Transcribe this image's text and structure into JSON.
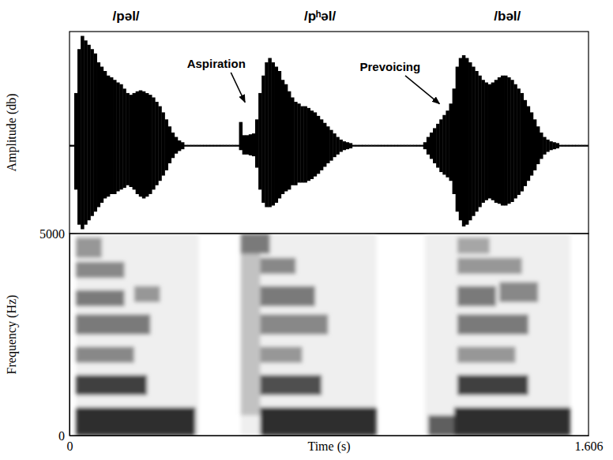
{
  "chart_data": [
    {
      "type": "waveform",
      "color": "#000000",
      "y_label": "Amplitude (db)",
      "tick_labels": false,
      "xlim": [
        0,
        1.606
      ],
      "ylim": [
        -1,
        1.3
      ],
      "labels": [
        {
          "text": "/pəl/",
          "x": 0.175
        },
        {
          "text": "/pʰəl/",
          "x": 0.775
        },
        {
          "text": "/bəl/",
          "x": 1.355
        }
      ],
      "annotations": [
        {
          "text": "Aspiration",
          "x": 0.454,
          "y": 0.924,
          "arrow_x": 0.543,
          "arrow_y": 0.495
        },
        {
          "text": "Prevoicing",
          "x": 0.992,
          "y": 0.888,
          "arrow_x": 1.145,
          "arrow_y": 0.477
        }
      ],
      "x": [
        0,
        0.01,
        0.02,
        0.03,
        0.04,
        0.05,
        0.06,
        0.07,
        0.08,
        0.09,
        0.1,
        0.11,
        0.12,
        0.13,
        0.14,
        0.15,
        0.16,
        0.17,
        0.18,
        0.19,
        0.2,
        0.21,
        0.22,
        0.23,
        0.24,
        0.25,
        0.26,
        0.27,
        0.28,
        0.29,
        0.3,
        0.31,
        0.32,
        0.33,
        0.34,
        0.35,
        0.36,
        0.37,
        0.38,
        0.39,
        0.4,
        0.41,
        0.42,
        0.43,
        0.44,
        0.45,
        0.46,
        0.47,
        0.48,
        0.49,
        0.5,
        0.51,
        0.52,
        0.53,
        0.54,
        0.55,
        0.56,
        0.57,
        0.58,
        0.59,
        0.6,
        0.61,
        0.62,
        0.63,
        0.64,
        0.65,
        0.66,
        0.67,
        0.68,
        0.69,
        0.7,
        0.71,
        0.72,
        0.73,
        0.74,
        0.75,
        0.76,
        0.77,
        0.78,
        0.79,
        0.8,
        0.81,
        0.82,
        0.83,
        0.84,
        0.85,
        0.86,
        0.87,
        0.88,
        0.89,
        0.9,
        0.91,
        0.92,
        0.93,
        0.94,
        0.95,
        0.96,
        0.97,
        0.98,
        0.99,
        1,
        1.01,
        1.02,
        1.03,
        1.04,
        1.05,
        1.06,
        1.07,
        1.08,
        1.09,
        1.1,
        1.11,
        1.12,
        1.13,
        1.14,
        1.15,
        1.16,
        1.17,
        1.18,
        1.19,
        1.2,
        1.21,
        1.22,
        1.23,
        1.24,
        1.25,
        1.26,
        1.27,
        1.28,
        1.29,
        1.3,
        1.31,
        1.32,
        1.33,
        1.34,
        1.35,
        1.36,
        1.37,
        1.38,
        1.39,
        1.4,
        1.41,
        1.42,
        1.43,
        1.44,
        1.45,
        1.46,
        1.47,
        1.48,
        1.49,
        1.5,
        1.51,
        1.52,
        1.53,
        1.54,
        1.55,
        1.56,
        1.57,
        1.58,
        1.59,
        1.6
      ],
      "series": [
        {
          "values": [
            0.01,
            0.01,
            0.6,
            1.1,
            1.25,
            1.2,
            1.15,
            1.1,
            1.05,
            0.95,
            0.9,
            0.85,
            0.8,
            0.78,
            0.75,
            0.72,
            0.7,
            0.65,
            0.6,
            0.58,
            0.6,
            0.62,
            0.63,
            0.62,
            0.6,
            0.58,
            0.55,
            0.5,
            0.45,
            0.38,
            0.3,
            0.22,
            0.15,
            0.1,
            0.06,
            0.04,
            0.01,
            0.01,
            0.01,
            0.01,
            0.01,
            0.01,
            0.01,
            0.01,
            0.01,
            0.01,
            0.01,
            0.01,
            0.01,
            0.01,
            0.01,
            0.01,
            0.01,
            0.27,
            0.12,
            0.12,
            0.13,
            0.14,
            0.3,
            0.6,
            0.8,
            0.95,
            1.0,
            0.95,
            0.9,
            0.85,
            0.75,
            0.7,
            0.62,
            0.55,
            0.5,
            0.48,
            0.45,
            0.45,
            0.43,
            0.4,
            0.38,
            0.34,
            0.3,
            0.26,
            0.22,
            0.18,
            0.14,
            0.1,
            0.07,
            0.05,
            0.04,
            0.03,
            0.01,
            0.01,
            0.01,
            0.01,
            0.01,
            0.01,
            0.01,
            0.01,
            0.01,
            0.01,
            0.01,
            0.01,
            0.01,
            0.01,
            0.01,
            0.01,
            0.01,
            0.01,
            0.01,
            0.01,
            0.01,
            0.01,
            0.04,
            0.1,
            0.15,
            0.2,
            0.25,
            0.3,
            0.35,
            0.4,
            0.48,
            0.65,
            0.9,
            1.0,
            1.03,
            1.0,
            0.95,
            0.9,
            0.85,
            0.8,
            0.75,
            0.72,
            0.7,
            0.72,
            0.75,
            0.78,
            0.8,
            0.8,
            0.78,
            0.75,
            0.7,
            0.65,
            0.6,
            0.52,
            0.45,
            0.38,
            0.3,
            0.22,
            0.15,
            0.1,
            0.07,
            0.05,
            0.04,
            0.03,
            0.01,
            0.01,
            0.01,
            0.01,
            0.01,
            0.01,
            0.01,
            0.01,
            0.01
          ]
        },
        {
          "values": [
            -0.01,
            -0.01,
            -0.5,
            -0.9,
            -0.95,
            -0.9,
            -0.85,
            -0.8,
            -0.75,
            -0.7,
            -0.65,
            -0.6,
            -0.58,
            -0.55,
            -0.55,
            -0.52,
            -0.5,
            -0.48,
            -0.45,
            -0.47,
            -0.5,
            -0.55,
            -0.58,
            -0.6,
            -0.58,
            -0.55,
            -0.5,
            -0.45,
            -0.4,
            -0.34,
            -0.28,
            -0.2,
            -0.14,
            -0.09,
            -0.06,
            -0.04,
            -0.01,
            -0.01,
            -0.01,
            -0.01,
            -0.01,
            -0.01,
            -0.01,
            -0.01,
            -0.01,
            -0.01,
            -0.01,
            -0.01,
            -0.01,
            -0.01,
            -0.01,
            -0.01,
            -0.01,
            -0.05,
            -0.1,
            -0.1,
            -0.11,
            -0.12,
            -0.25,
            -0.5,
            -0.65,
            -0.7,
            -0.7,
            -0.68,
            -0.65,
            -0.6,
            -0.55,
            -0.52,
            -0.5,
            -0.45,
            -0.45,
            -0.42,
            -0.42,
            -0.42,
            -0.4,
            -0.38,
            -0.35,
            -0.32,
            -0.28,
            -0.24,
            -0.2,
            -0.17,
            -0.13,
            -0.1,
            -0.07,
            -0.05,
            -0.04,
            -0.03,
            -0.01,
            -0.01,
            -0.01,
            -0.01,
            -0.01,
            -0.01,
            -0.01,
            -0.01,
            -0.01,
            -0.01,
            -0.01,
            -0.01,
            -0.01,
            -0.01,
            -0.01,
            -0.01,
            -0.01,
            -0.01,
            -0.01,
            -0.01,
            -0.01,
            -0.01,
            -0.04,
            -0.1,
            -0.15,
            -0.2,
            -0.25,
            -0.3,
            -0.33,
            -0.36,
            -0.4,
            -0.55,
            -0.75,
            -0.85,
            -0.92,
            -0.9,
            -0.85,
            -0.8,
            -0.75,
            -0.7,
            -0.65,
            -0.62,
            -0.6,
            -0.62,
            -0.65,
            -0.66,
            -0.68,
            -0.68,
            -0.66,
            -0.64,
            -0.6,
            -0.56,
            -0.52,
            -0.46,
            -0.4,
            -0.34,
            -0.28,
            -0.21,
            -0.15,
            -0.1,
            -0.07,
            -0.05,
            -0.04,
            -0.03,
            -0.01,
            -0.01,
            -0.01,
            -0.01,
            -0.01,
            -0.01,
            -0.01,
            -0.01,
            -0.01
          ]
        }
      ]
    },
    {
      "type": "spectrogram",
      "x_label": "Time (s)",
      "y_label": "Frequency (Hz)",
      "xlim": [
        0,
        1.606
      ],
      "xticks": [
        0,
        1.606
      ],
      "ylim": [
        0,
        5000
      ],
      "yticks": [
        0,
        5000
      ],
      "cells": [
        {
          "x0": 0.02,
          "x1": 0.4,
          "y0": 0,
          "y1": 5000,
          "value": 0.12
        },
        {
          "x0": 0.53,
          "x1": 0.95,
          "y0": 0,
          "y1": 5000,
          "value": 0.12
        },
        {
          "x0": 1.1,
          "x1": 1.55,
          "y0": 0,
          "y1": 5000,
          "value": 0.12
        },
        {
          "x0": 0.02,
          "x1": 0.39,
          "y0": 0,
          "y1": 700,
          "value": 0.85
        },
        {
          "x0": 0.02,
          "x1": 0.24,
          "y0": 1000,
          "y1": 1500,
          "value": 0.8
        },
        {
          "x0": 0.02,
          "x1": 0.2,
          "y0": 1800,
          "y1": 2200,
          "value": 0.55
        },
        {
          "x0": 0.02,
          "x1": 0.25,
          "y0": 2500,
          "y1": 3000,
          "value": 0.6
        },
        {
          "x0": 0.02,
          "x1": 0.17,
          "y0": 3200,
          "y1": 3600,
          "value": 0.6
        },
        {
          "x0": 0.2,
          "x1": 0.28,
          "y0": 3300,
          "y1": 3700,
          "value": 0.5
        },
        {
          "x0": 0.02,
          "x1": 0.17,
          "y0": 3900,
          "y1": 4300,
          "value": 0.55
        },
        {
          "x0": 0.02,
          "x1": 0.1,
          "y0": 4400,
          "y1": 4900,
          "value": 0.5
        },
        {
          "x0": 0.53,
          "x1": 0.59,
          "y0": 500,
          "y1": 5000,
          "value": 0.35
        },
        {
          "x0": 0.59,
          "x1": 0.95,
          "y0": 0,
          "y1": 700,
          "value": 0.85
        },
        {
          "x0": 0.59,
          "x1": 0.78,
          "y0": 1000,
          "y1": 1500,
          "value": 0.75
        },
        {
          "x0": 0.59,
          "x1": 0.72,
          "y0": 1800,
          "y1": 2200,
          "value": 0.5
        },
        {
          "x0": 0.59,
          "x1": 0.8,
          "y0": 2500,
          "y1": 3000,
          "value": 0.55
        },
        {
          "x0": 0.59,
          "x1": 0.76,
          "y0": 3200,
          "y1": 3700,
          "value": 0.6
        },
        {
          "x0": 0.59,
          "x1": 0.7,
          "y0": 4000,
          "y1": 4400,
          "value": 0.55
        },
        {
          "x0": 0.53,
          "x1": 0.62,
          "y0": 4500,
          "y1": 5000,
          "value": 0.6
        },
        {
          "x0": 1.11,
          "x1": 1.2,
          "y0": 0,
          "y1": 500,
          "value": 0.7
        },
        {
          "x0": 1.19,
          "x1": 1.55,
          "y0": 0,
          "y1": 700,
          "value": 0.85
        },
        {
          "x0": 1.2,
          "x1": 1.42,
          "y0": 1000,
          "y1": 1500,
          "value": 0.8
        },
        {
          "x0": 1.2,
          "x1": 1.38,
          "y0": 1800,
          "y1": 2200,
          "value": 0.5
        },
        {
          "x0": 1.2,
          "x1": 1.42,
          "y0": 2500,
          "y1": 3000,
          "value": 0.6
        },
        {
          "x0": 1.2,
          "x1": 1.32,
          "y0": 3200,
          "y1": 3700,
          "value": 0.6
        },
        {
          "x0": 1.33,
          "x1": 1.45,
          "y0": 3300,
          "y1": 3800,
          "value": 0.55
        },
        {
          "x0": 1.2,
          "x1": 1.4,
          "y0": 4000,
          "y1": 4400,
          "value": 0.5
        },
        {
          "x0": 1.2,
          "x1": 1.3,
          "y0": 4500,
          "y1": 4900,
          "value": 0.45
        }
      ]
    }
  ]
}
